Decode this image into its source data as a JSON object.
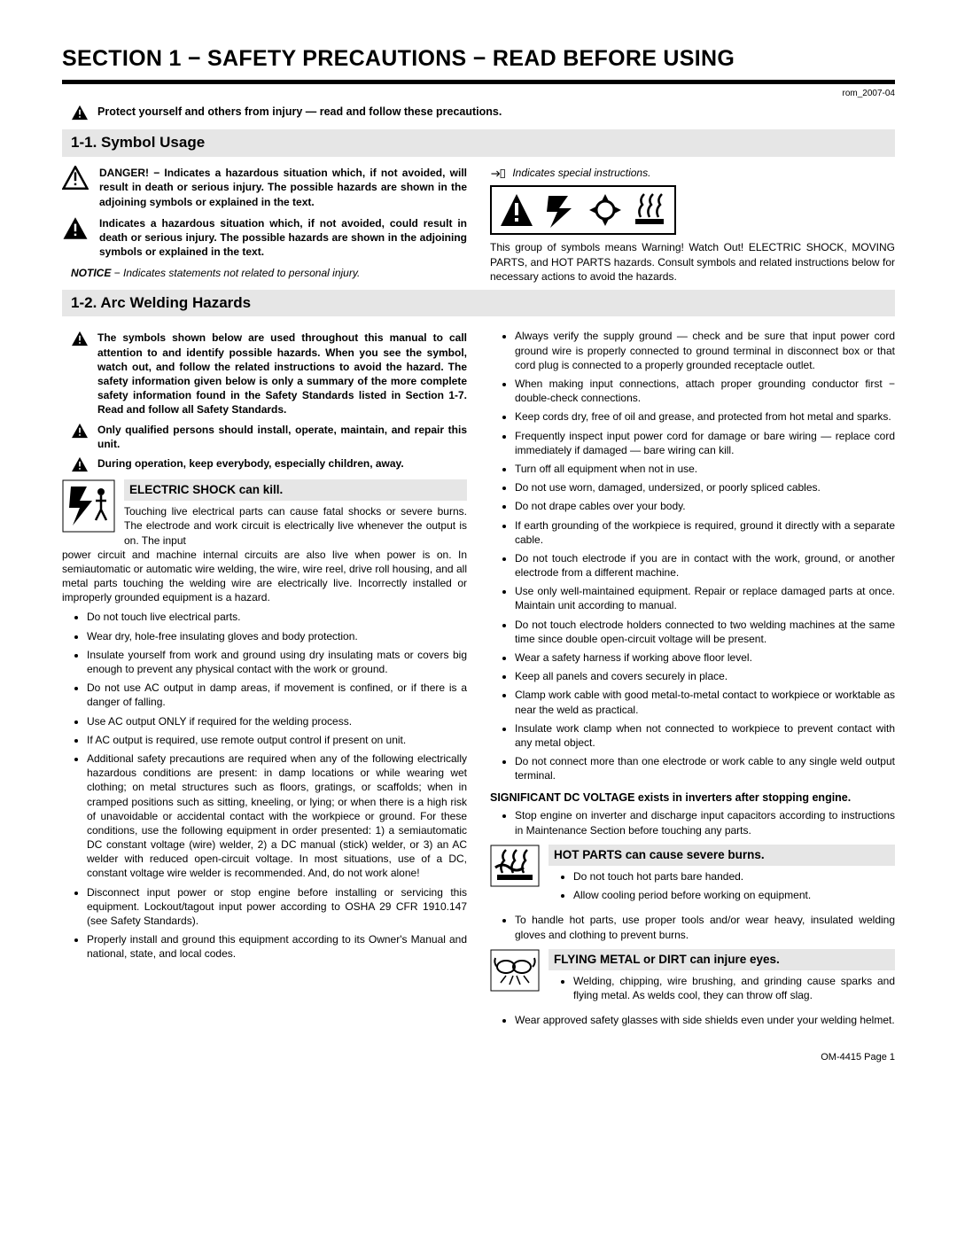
{
  "document": {
    "revision_code": "rom_2007-04",
    "footer": "OM-4415 Page 1"
  },
  "section_title": "SECTION 1 − SAFETY PRECAUTIONS − READ BEFORE USING",
  "intro_warning": "Protect yourself and others from injury — read and follow these precautions.",
  "sub_1_1": {
    "heading": "1-1.   Symbol Usage",
    "danger_text": "DANGER! − Indicates a hazardous situation which, if not avoided, will result in death or serious injury. The possible hazards are shown in the adjoining symbols or explained in the text.",
    "warning_text": "Indicates a hazardous situation which, if not avoided, could result in death or serious injury. The possible hazards are shown in the adjoining symbols or explained in the text.",
    "notice_label": "NOTICE",
    "notice_text": " − Indicates statements not related to personal injury.",
    "special_instructions": "Indicates special instructions.",
    "symbol_group_caption": "This group of symbols means Warning! Watch Out! ELECTRIC SHOCK, MOVING PARTS, and HOT PARTS hazards. Consult symbols and related instructions below for necessary actions to avoid the hazards."
  },
  "sub_1_2": {
    "heading": "1-2.   Arc Welding Hazards",
    "note1": "The symbols shown below are used throughout this manual to call attention to and identify possible hazards. When you see the symbol, watch out, and follow the related instructions to avoid the hazard. The safety information given below is only a summary of the more complete safety information found in the Safety Standards listed in Section 1-7. Read and follow all Safety Standards.",
    "note2": "Only qualified persons should install, operate, maintain, and repair this unit.",
    "note3": "During operation, keep everybody, especially children, away.",
    "electric_shock": {
      "title": "ELECTRIC SHOCK can kill.",
      "lead": "Touching live electrical parts can cause fatal shocks or severe burns. The electrode and work circuit is electrically live whenever the output is on. The input",
      "lead_cont": "power circuit and machine internal circuits are also live when power is on. In semiautomatic or automatic wire welding, the wire, wire reel, drive roll housing, and all metal parts touching the welding wire are electrically live. Incorrectly installed or improperly grounded equipment is a hazard.",
      "bullets_left": [
        "Do not touch live electrical parts.",
        "Wear dry, hole-free insulating gloves and body protection.",
        "Insulate yourself from work and ground using dry insulating mats or covers big enough to prevent any physical contact with the work or ground.",
        "Do not use AC output in damp areas, if movement is confined, or if there is a danger of falling.",
        "Use AC output ONLY if required for the welding process.",
        "If AC output is required, use remote output control if present on unit.",
        "Additional safety precautions are required when any of the following electrically hazardous conditions are present: in damp locations or while wearing wet clothing; on metal structures such as floors, gratings, or scaffolds; when in cramped positions such as sitting, kneeling, or lying; or when there is a high risk of unavoidable or accidental contact with the workpiece or ground. For these conditions, use the following equipment in order presented: 1) a semiautomatic DC constant voltage (wire) welder, 2) a DC manual (stick) welder, or 3) an AC welder with reduced open-circuit voltage. In most situations, use of a DC, constant voltage wire welder is recommended. And, do not work alone!",
        "Disconnect input power or stop engine before installing or servicing this equipment. Lockout/tagout input power according to OSHA 29 CFR 1910.147 (see Safety Standards).",
        "Properly install and ground this equipment according to its Owner's Manual and national, state, and local codes."
      ],
      "bullets_right": [
        "Always verify the supply ground — check and be sure that input power cord ground wire is properly connected to ground terminal in disconnect box or that cord plug is connected to a properly grounded receptacle outlet.",
        "When making input connections, attach proper grounding conductor first − double-check connections.",
        "Keep cords dry, free of oil and grease, and protected from hot metal and sparks.",
        "Frequently inspect input power cord for damage or bare wiring — replace cord immediately if damaged — bare wiring can kill.",
        "Turn off all equipment when not in use.",
        "Do not use worn, damaged, undersized, or poorly spliced cables.",
        "Do not drape cables over your body.",
        "If earth grounding of the workpiece is required, ground it directly with a separate cable.",
        "Do not touch electrode if you are in contact with the work, ground, or another electrode from a different machine.",
        "Use only well-maintained equipment. Repair or replace damaged parts at once. Maintain unit according to manual.",
        "Do not touch electrode holders connected to two welding machines at the same time since double open-circuit voltage will be present.",
        "Wear a safety harness if working above floor level.",
        "Keep all panels and covers securely in place.",
        "Clamp work cable with good metal-to-metal contact to workpiece or worktable as near the weld as practical.",
        "Insulate work clamp when not connected to workpiece to prevent contact with any metal object.",
        "Do not connect more than one electrode or work cable to any single weld output terminal."
      ]
    },
    "dc_voltage": {
      "title": "SIGNIFICANT DC VOLTAGE exists in inverters after stopping engine.",
      "bullets": [
        "Stop engine on inverter and discharge input capacitors according to instructions in Maintenance Section before touching any parts."
      ]
    },
    "hot_parts": {
      "title": "HOT PARTS can cause severe burns.",
      "bullets_a": [
        "Do not touch hot parts bare handed.",
        "Allow cooling period before working on equipment."
      ],
      "bullets_b": [
        "To handle hot parts, use proper tools and/or wear heavy, insulated welding gloves and clothing to prevent burns."
      ]
    },
    "flying_metal": {
      "title": "FLYING METAL or DIRT can injure eyes.",
      "bullets_a": [
        "Welding, chipping, wire brushing, and grinding cause sparks and flying metal. As welds cool, they can throw off slag."
      ],
      "bullets_b": [
        "Wear approved safety glasses with side shields even under your welding helmet."
      ]
    }
  },
  "colors": {
    "subhead_bg": "#e6e6e6",
    "text": "#000000",
    "page_bg": "#ffffff"
  }
}
